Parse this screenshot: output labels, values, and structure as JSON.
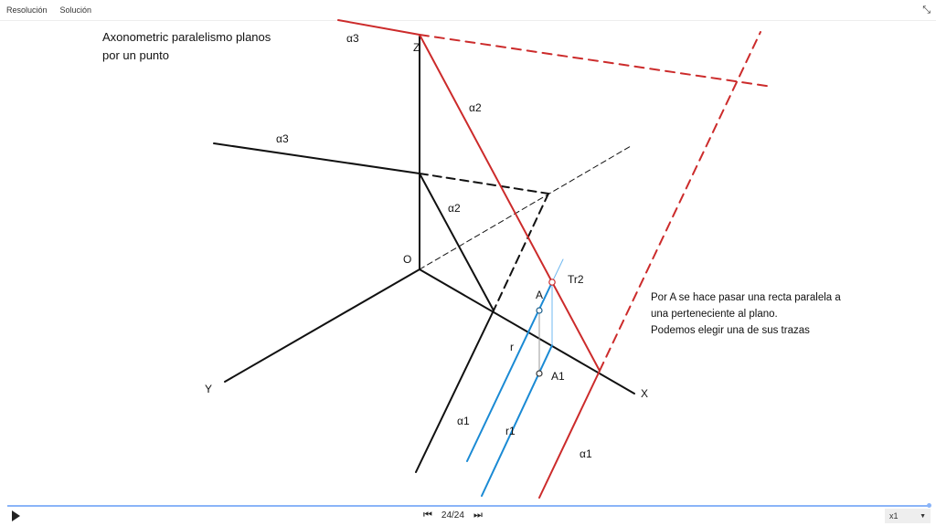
{
  "tabs": [
    {
      "label": "Resolución",
      "active": false
    },
    {
      "label": "Solución",
      "active": true
    }
  ],
  "title_lines": [
    "Axonometric paralelismo planos",
    "por un punto"
  ],
  "note_lines": [
    "Por A se hace pasar una recta paralela a",
    "una perteneciente al plano.",
    "Podemos elegir una de sus trazas"
  ],
  "labels": {
    "alpha3_red": "α3",
    "z": "Z",
    "alpha2_red": "α2",
    "alpha3_black": "α3",
    "alpha2_black": "α2",
    "o": "O",
    "tr2": "Tr2",
    "a": "A",
    "r": "r",
    "a1": "A1",
    "alpha1_blue": "α1",
    "r1": "r1",
    "alpha1_red": "α1",
    "y": "Y",
    "x": "X"
  },
  "colors": {
    "red": "#cc2b2b",
    "blue": "#1a8ad4",
    "light_blue": "#6fb8f0",
    "black": "#111111",
    "progress": "#8ab4f8"
  },
  "player": {
    "step": "24/24",
    "speed": "x1",
    "progress": 1.0
  },
  "icons": {
    "collapse": "collapse-icon",
    "play": "play-icon",
    "prev": "skip-previous-icon",
    "next": "skip-next-icon",
    "dropdown": "dropdown-arrow-icon"
  }
}
